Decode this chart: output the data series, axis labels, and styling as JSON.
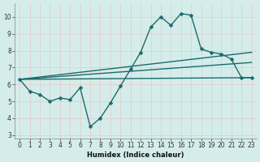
{
  "xlabel": "Humidex (Indice chaleur)",
  "xlim": [
    -0.5,
    23.5
  ],
  "ylim": [
    2.8,
    10.8
  ],
  "yticks": [
    3,
    4,
    5,
    6,
    7,
    8,
    9,
    10
  ],
  "xticks": [
    0,
    1,
    2,
    3,
    4,
    5,
    6,
    7,
    8,
    9,
    10,
    11,
    12,
    13,
    14,
    15,
    16,
    17,
    18,
    19,
    20,
    21,
    22,
    23
  ],
  "bg_color": "#d4edea",
  "grid_color": "#c8dede",
  "line_color": "#1a6b6b",
  "main_line": {
    "x": [
      0,
      1,
      2,
      3,
      4,
      5,
      6,
      7,
      8,
      9,
      10,
      11,
      12,
      13,
      14,
      15,
      16,
      17,
      18,
      19,
      20,
      21,
      22,
      23
    ],
    "y": [
      6.3,
      5.6,
      5.4,
      5.0,
      5.2,
      5.1,
      5.8,
      3.5,
      4.0,
      4.9,
      5.9,
      6.9,
      7.9,
      9.4,
      10.0,
      9.5,
      10.2,
      10.1,
      8.1,
      7.9,
      7.8,
      7.5,
      6.4,
      6.4
    ]
  },
  "trend_lines": [
    {
      "x": [
        0,
        23
      ],
      "y": [
        6.3,
        6.4
      ]
    },
    {
      "x": [
        0,
        23
      ],
      "y": [
        6.3,
        7.3
      ]
    },
    {
      "x": [
        0,
        23
      ],
      "y": [
        6.3,
        7.9
      ]
    }
  ],
  "xlabel_fontsize": 6,
  "tick_fontsize": 5.5,
  "linewidth": 1.0,
  "markersize": 2.5
}
